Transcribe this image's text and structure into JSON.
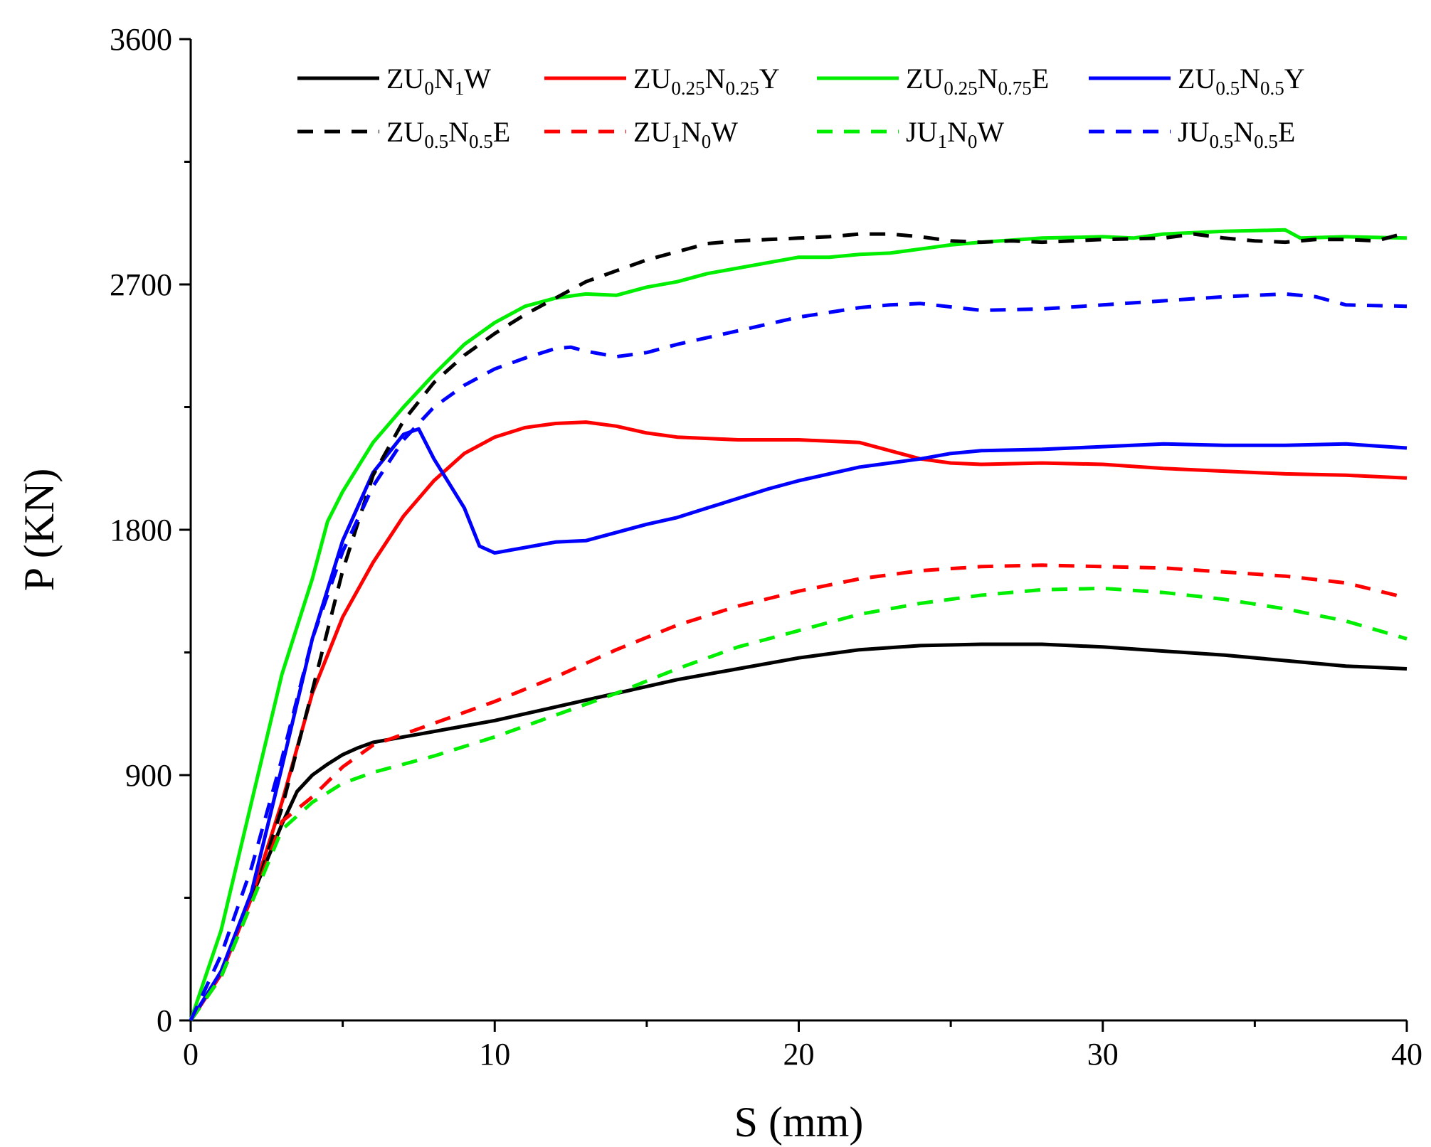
{
  "chart_data": {
    "type": "line",
    "title": "",
    "xlabel": "S (mm)",
    "ylabel": "P (KN)",
    "xlim": [
      0,
      40
    ],
    "ylim": [
      0,
      3600
    ],
    "xticks": [
      0,
      10,
      20,
      30,
      40
    ],
    "yticks": [
      0,
      900,
      1800,
      2700,
      3600
    ],
    "x_minor_step": 5,
    "y_minor_step": 450,
    "grid": false,
    "legend_position": "top",
    "series": [
      {
        "name": "ZU0N1W",
        "label_parts": [
          [
            "ZU",
            ""
          ],
          [
            "0",
            "sub"
          ],
          [
            "N",
            ""
          ],
          [
            "1",
            "sub"
          ],
          [
            "W",
            ""
          ]
        ],
        "color": "#000000",
        "dash": "solid",
        "points": [
          [
            0,
            0
          ],
          [
            1,
            170
          ],
          [
            2,
            450
          ],
          [
            3,
            720
          ],
          [
            3.5,
            840
          ],
          [
            4,
            900
          ],
          [
            4.5,
            940
          ],
          [
            5,
            975
          ],
          [
            5.5,
            1000
          ],
          [
            6,
            1020
          ],
          [
            7,
            1040
          ],
          [
            8,
            1060
          ],
          [
            9,
            1080
          ],
          [
            10,
            1100
          ],
          [
            12,
            1150
          ],
          [
            14,
            1200
          ],
          [
            16,
            1250
          ],
          [
            18,
            1290
          ],
          [
            20,
            1330
          ],
          [
            22,
            1360
          ],
          [
            24,
            1375
          ],
          [
            26,
            1380
          ],
          [
            28,
            1380
          ],
          [
            30,
            1370
          ],
          [
            32,
            1355
          ],
          [
            34,
            1340
          ],
          [
            36,
            1320
          ],
          [
            38,
            1300
          ],
          [
            40,
            1290
          ]
        ]
      },
      {
        "name": "ZU0.25N0.25Y",
        "label_parts": [
          [
            "ZU",
            ""
          ],
          [
            "0.25",
            "sub"
          ],
          [
            "N",
            ""
          ],
          [
            "0.25",
            "sub"
          ],
          [
            "Y",
            ""
          ]
        ],
        "color": "#ff0000",
        "dash": "solid",
        "points": [
          [
            0,
            0
          ],
          [
            1,
            170
          ],
          [
            2,
            450
          ],
          [
            3,
            800
          ],
          [
            4,
            1200
          ],
          [
            5,
            1480
          ],
          [
            6,
            1680
          ],
          [
            7,
            1850
          ],
          [
            8,
            1980
          ],
          [
            9,
            2080
          ],
          [
            10,
            2140
          ],
          [
            11,
            2175
          ],
          [
            12,
            2190
          ],
          [
            13,
            2195
          ],
          [
            14,
            2180
          ],
          [
            15,
            2155
          ],
          [
            16,
            2140
          ],
          [
            18,
            2130
          ],
          [
            20,
            2130
          ],
          [
            22,
            2120
          ],
          [
            23,
            2090
          ],
          [
            24,
            2060
          ],
          [
            25,
            2045
          ],
          [
            26,
            2040
          ],
          [
            28,
            2045
          ],
          [
            30,
            2040
          ],
          [
            32,
            2025
          ],
          [
            34,
            2015
          ],
          [
            36,
            2005
          ],
          [
            38,
            2000
          ],
          [
            40,
            1990
          ]
        ]
      },
      {
        "name": "ZU0.25N0.75E",
        "label_parts": [
          [
            "ZU",
            ""
          ],
          [
            "0.25",
            "sub"
          ],
          [
            "N",
            ""
          ],
          [
            "0.75",
            "sub"
          ],
          [
            "E",
            ""
          ]
        ],
        "color": "#00ee00",
        "dash": "solid",
        "points": [
          [
            0,
            0
          ],
          [
            1,
            330
          ],
          [
            2,
            800
          ],
          [
            3,
            1270
          ],
          [
            4,
            1620
          ],
          [
            4.5,
            1830
          ],
          [
            5,
            1940
          ],
          [
            6,
            2120
          ],
          [
            7,
            2250
          ],
          [
            8,
            2370
          ],
          [
            9,
            2480
          ],
          [
            10,
            2560
          ],
          [
            11,
            2620
          ],
          [
            12,
            2650
          ],
          [
            13,
            2665
          ],
          [
            14,
            2660
          ],
          [
            15,
            2690
          ],
          [
            16,
            2710
          ],
          [
            17,
            2740
          ],
          [
            18,
            2760
          ],
          [
            19,
            2780
          ],
          [
            20,
            2800
          ],
          [
            21,
            2800
          ],
          [
            22,
            2810
          ],
          [
            23,
            2815
          ],
          [
            24,
            2830
          ],
          [
            25,
            2845
          ],
          [
            26,
            2855
          ],
          [
            28,
            2870
          ],
          [
            30,
            2875
          ],
          [
            31,
            2870
          ],
          [
            32,
            2885
          ],
          [
            34,
            2895
          ],
          [
            36,
            2900
          ],
          [
            36.5,
            2870
          ],
          [
            38,
            2875
          ],
          [
            40,
            2870
          ]
        ]
      },
      {
        "name": "ZU0.5N0.5Y",
        "label_parts": [
          [
            "ZU",
            ""
          ],
          [
            "0.5",
            "sub"
          ],
          [
            "N",
            ""
          ],
          [
            "0.5",
            "sub"
          ],
          [
            "Y",
            ""
          ]
        ],
        "color": "#0000ff",
        "dash": "solid",
        "points": [
          [
            0,
            0
          ],
          [
            1,
            180
          ],
          [
            2,
            470
          ],
          [
            3,
            930
          ],
          [
            4,
            1400
          ],
          [
            5,
            1760
          ],
          [
            6,
            2010
          ],
          [
            7,
            2150
          ],
          [
            7.5,
            2170
          ],
          [
            8,
            2060
          ],
          [
            8.5,
            1970
          ],
          [
            9,
            1880
          ],
          [
            9.5,
            1740
          ],
          [
            10,
            1715
          ],
          [
            11,
            1735
          ],
          [
            12,
            1755
          ],
          [
            13,
            1760
          ],
          [
            14,
            1790
          ],
          [
            15,
            1820
          ],
          [
            16,
            1845
          ],
          [
            17,
            1880
          ],
          [
            18,
            1915
          ],
          [
            19,
            1950
          ],
          [
            20,
            1980
          ],
          [
            21,
            2005
          ],
          [
            22,
            2030
          ],
          [
            23,
            2045
          ],
          [
            24,
            2060
          ],
          [
            25,
            2080
          ],
          [
            26,
            2090
          ],
          [
            28,
            2095
          ],
          [
            30,
            2105
          ],
          [
            32,
            2115
          ],
          [
            34,
            2110
          ],
          [
            36,
            2110
          ],
          [
            38,
            2115
          ],
          [
            40,
            2100
          ]
        ]
      },
      {
        "name": "ZU0.5N0.5E",
        "label_parts": [
          [
            "ZU",
            ""
          ],
          [
            "0.5",
            "sub"
          ],
          [
            "N",
            ""
          ],
          [
            "0.5",
            "sub"
          ],
          [
            "E",
            ""
          ]
        ],
        "color": "#000000",
        "dash": "dashed",
        "points": [
          [
            0,
            0
          ],
          [
            1,
            160
          ],
          [
            2,
            430
          ],
          [
            3,
            780
          ],
          [
            4,
            1210
          ],
          [
            5,
            1650
          ],
          [
            6,
            2000
          ],
          [
            7,
            2200
          ],
          [
            8,
            2340
          ],
          [
            9,
            2440
          ],
          [
            10,
            2520
          ],
          [
            11,
            2590
          ],
          [
            12,
            2650
          ],
          [
            13,
            2710
          ],
          [
            14,
            2750
          ],
          [
            15,
            2790
          ],
          [
            16,
            2820
          ],
          [
            17,
            2850
          ],
          [
            18,
            2860
          ],
          [
            19,
            2865
          ],
          [
            20,
            2870
          ],
          [
            21,
            2875
          ],
          [
            22,
            2885
          ],
          [
            23,
            2885
          ],
          [
            24,
            2875
          ],
          [
            25,
            2860
          ],
          [
            26,
            2855
          ],
          [
            27,
            2860
          ],
          [
            28,
            2855
          ],
          [
            30,
            2865
          ],
          [
            32,
            2870
          ],
          [
            33,
            2885
          ],
          [
            34,
            2870
          ],
          [
            35,
            2860
          ],
          [
            36,
            2855
          ],
          [
            37,
            2865
          ],
          [
            38,
            2865
          ],
          [
            39,
            2860
          ],
          [
            40,
            2890
          ]
        ]
      },
      {
        "name": "ZU1N0W",
        "label_parts": [
          [
            "ZU",
            ""
          ],
          [
            "1",
            "sub"
          ],
          [
            "N",
            ""
          ],
          [
            "0",
            "sub"
          ],
          [
            "W",
            ""
          ]
        ],
        "color": "#ff0000",
        "dash": "dashed",
        "points": [
          [
            0,
            0
          ],
          [
            1,
            160
          ],
          [
            2,
            430
          ],
          [
            3,
            730
          ],
          [
            4,
            820
          ],
          [
            5,
            930
          ],
          [
            6,
            1010
          ],
          [
            7,
            1050
          ],
          [
            8,
            1090
          ],
          [
            10,
            1170
          ],
          [
            12,
            1260
          ],
          [
            14,
            1360
          ],
          [
            16,
            1450
          ],
          [
            18,
            1520
          ],
          [
            20,
            1575
          ],
          [
            22,
            1620
          ],
          [
            24,
            1650
          ],
          [
            26,
            1665
          ],
          [
            28,
            1670
          ],
          [
            30,
            1665
          ],
          [
            32,
            1660
          ],
          [
            34,
            1645
          ],
          [
            36,
            1630
          ],
          [
            38,
            1605
          ],
          [
            40,
            1550
          ]
        ]
      },
      {
        "name": "JU1N0W",
        "label_parts": [
          [
            "JU",
            ""
          ],
          [
            "1",
            "sub"
          ],
          [
            "N",
            ""
          ],
          [
            "0",
            "sub"
          ],
          [
            "W",
            ""
          ]
        ],
        "color": "#00ee00",
        "dash": "dashed",
        "points": [
          [
            0,
            0
          ],
          [
            1,
            160
          ],
          [
            2,
            430
          ],
          [
            3,
            700
          ],
          [
            4,
            800
          ],
          [
            5,
            870
          ],
          [
            6,
            910
          ],
          [
            8,
            970
          ],
          [
            10,
            1040
          ],
          [
            12,
            1120
          ],
          [
            14,
            1200
          ],
          [
            16,
            1290
          ],
          [
            18,
            1370
          ],
          [
            20,
            1430
          ],
          [
            22,
            1490
          ],
          [
            24,
            1530
          ],
          [
            26,
            1560
          ],
          [
            28,
            1580
          ],
          [
            30,
            1585
          ],
          [
            32,
            1570
          ],
          [
            34,
            1545
          ],
          [
            36,
            1510
          ],
          [
            38,
            1465
          ],
          [
            40,
            1400
          ]
        ]
      },
      {
        "name": "JU0.5N0.5E",
        "label_parts": [
          [
            "JU",
            ""
          ],
          [
            "0.5",
            "sub"
          ],
          [
            "N",
            ""
          ],
          [
            "0.5",
            "sub"
          ],
          [
            "E",
            ""
          ]
        ],
        "color": "#0000ff",
        "dash": "dashed",
        "points": [
          [
            0,
            0
          ],
          [
            1,
            240
          ],
          [
            2,
            560
          ],
          [
            3,
            960
          ],
          [
            4,
            1400
          ],
          [
            5,
            1720
          ],
          [
            6,
            1960
          ],
          [
            7,
            2130
          ],
          [
            8,
            2250
          ],
          [
            9,
            2330
          ],
          [
            10,
            2390
          ],
          [
            11,
            2430
          ],
          [
            12,
            2465
          ],
          [
            12.5,
            2470
          ],
          [
            13,
            2455
          ],
          [
            14,
            2435
          ],
          [
            15,
            2450
          ],
          [
            16,
            2480
          ],
          [
            18,
            2530
          ],
          [
            20,
            2580
          ],
          [
            22,
            2615
          ],
          [
            23,
            2625
          ],
          [
            24,
            2630
          ],
          [
            26,
            2605
          ],
          [
            28,
            2610
          ],
          [
            30,
            2625
          ],
          [
            32,
            2640
          ],
          [
            34,
            2655
          ],
          [
            36,
            2665
          ],
          [
            37,
            2655
          ],
          [
            38,
            2625
          ],
          [
            40,
            2620
          ]
        ]
      }
    ]
  }
}
